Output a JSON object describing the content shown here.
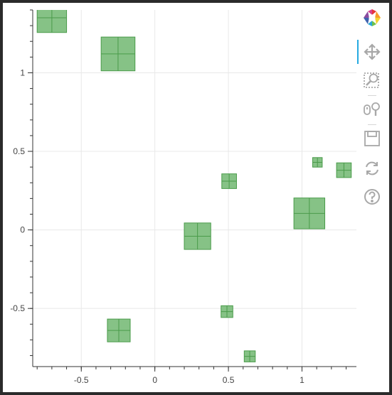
{
  "chart_data": {
    "type": "scatter",
    "marker": "square_cross",
    "xlim": [
      -0.83,
      1.37
    ],
    "ylim": [
      -0.87,
      1.4
    ],
    "x_ticks": [
      -0.5,
      0,
      0.5,
      1
    ],
    "x_tick_labels": [
      "-0.5",
      "0",
      "0.5",
      "1"
    ],
    "y_ticks": [
      -0.5,
      0,
      0.5,
      1
    ],
    "y_tick_labels": [
      "-0.5",
      "0",
      "0.5",
      "1"
    ],
    "grid": true,
    "colors": {
      "fill": "#7fbf7f",
      "stroke": "#4a9b4a",
      "grid": "#e8e8e8",
      "axis": "#333333"
    },
    "points": [
      {
        "x": -0.7,
        "y": 1.35,
        "size": 0.2
      },
      {
        "x": -0.25,
        "y": 1.12,
        "size": 0.23
      },
      {
        "x": 0.29,
        "y": -0.04,
        "size": 0.18
      },
      {
        "x": 1.05,
        "y": 0.105,
        "size": 0.21
      },
      {
        "x": 0.505,
        "y": 0.31,
        "size": 0.1
      },
      {
        "x": 1.105,
        "y": 0.43,
        "size": 0.065
      },
      {
        "x": 1.285,
        "y": 0.38,
        "size": 0.1
      },
      {
        "x": -0.245,
        "y": -0.64,
        "size": 0.155
      },
      {
        "x": 0.49,
        "y": -0.52,
        "size": 0.08
      },
      {
        "x": 0.645,
        "y": -0.805,
        "size": 0.075
      }
    ]
  },
  "toolbar": {
    "tools": [
      {
        "icon": "bokeh-logo-icon"
      },
      {
        "icon": "pan-icon",
        "active": true
      },
      {
        "icon": "box-zoom-icon"
      },
      {
        "icon": "wheel-zoom-icon"
      },
      {
        "icon": "save-icon"
      },
      {
        "icon": "reset-icon"
      },
      {
        "icon": "help-icon"
      }
    ]
  }
}
